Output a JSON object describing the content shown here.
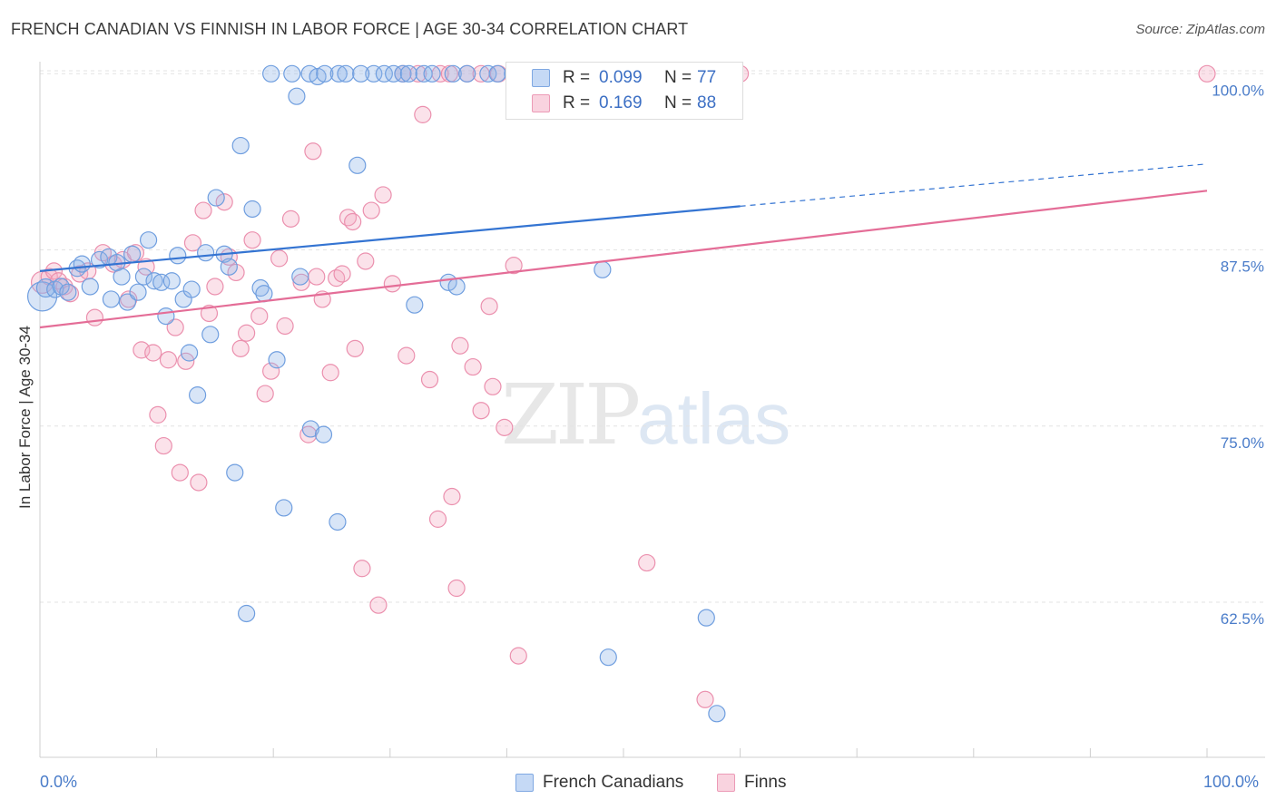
{
  "header": {
    "title": "FRENCH CANADIAN VS FINNISH IN LABOR FORCE | AGE 30-34 CORRELATION CHART",
    "source": "Source: ZipAtlas.com"
  },
  "watermark": {
    "zip": "ZIP",
    "atlas": "atlas"
  },
  "legend": {
    "rows": [
      {
        "r_label": "R =",
        "r_value": "0.099",
        "n_label": "N =",
        "n_value": "77",
        "color": "#a9c6ef"
      },
      {
        "r_label": "R =",
        "r_value": "0.169",
        "n_label": "N =",
        "n_value": "88",
        "color": "#f5b8cb"
      }
    ]
  },
  "bottom_legend": {
    "items": [
      {
        "label": "French Canadians",
        "color": "#a9c6ef"
      },
      {
        "label": "Finns",
        "color": "#f5b8cb"
      }
    ]
  },
  "colors": {
    "blue_fill": "rgba(143,180,232,0.35)",
    "blue_stroke": "#6f9edf",
    "blue_line": "#3474d2",
    "pink_fill": "rgba(244,172,196,0.35)",
    "pink_stroke": "#eb90ae",
    "pink_line": "#e46d97",
    "grid": "#e3e3e3",
    "tick_text": "#4a7cc9"
  },
  "chart_data": {
    "type": "scatter",
    "title": "FRENCH CANADIAN VS FINNISH IN LABOR FORCE | AGE 30-34 CORRELATION CHART",
    "xlabel": "",
    "ylabel": "In Labor Force | Age 30-34",
    "xlim": [
      0,
      100
    ],
    "ylim": [
      51.5,
      101.5
    ],
    "x_tick_labels": [
      "0.0%",
      "100.0%"
    ],
    "y_ticks": [
      {
        "value": 62.5,
        "label": "62.5%"
      },
      {
        "value": 75.0,
        "label": "75.0%"
      },
      {
        "value": 87.5,
        "label": "87.5%"
      },
      {
        "value": 100.0,
        "label": "100.0%"
      }
    ],
    "grid": true,
    "legend_position": "top-center",
    "series": [
      {
        "name": "French Canadians",
        "R": 0.099,
        "N": 77,
        "trend": {
          "x": [
            0,
            60,
            100
          ],
          "y": [
            86.0,
            90.6,
            93.6
          ],
          "solid_until": 60
        },
        "points": [
          [
            0.2,
            84.2,
            16
          ],
          [
            0.5,
            84.8,
            10
          ],
          [
            1.3,
            84.7,
            9
          ],
          [
            1.8,
            84.9,
            9
          ],
          [
            2.4,
            84.5,
            9
          ],
          [
            3.2,
            86.2,
            9
          ],
          [
            3.6,
            86.5,
            9
          ],
          [
            4.3,
            84.9,
            9
          ],
          [
            5.1,
            86.8,
            9
          ],
          [
            5.9,
            87.0,
            9
          ],
          [
            6.1,
            84.0,
            9
          ],
          [
            6.6,
            86.6,
            9
          ],
          [
            7.0,
            85.6,
            9
          ],
          [
            7.5,
            83.8,
            9
          ],
          [
            7.9,
            87.2,
            9
          ],
          [
            8.4,
            84.5,
            9
          ],
          [
            8.9,
            85.6,
            9
          ],
          [
            9.3,
            88.2,
            9
          ],
          [
            9.8,
            85.3,
            9
          ],
          [
            10.4,
            85.2,
            9
          ],
          [
            10.8,
            82.8,
            9
          ],
          [
            11.3,
            85.3,
            9
          ],
          [
            11.8,
            87.1,
            9
          ],
          [
            12.3,
            84.0,
            9
          ],
          [
            12.8,
            80.2,
            9
          ],
          [
            13.0,
            84.7,
            9
          ],
          [
            13.5,
            77.2,
            9
          ],
          [
            14.2,
            87.3,
            9
          ],
          [
            14.6,
            81.5,
            9
          ],
          [
            15.1,
            91.2,
            9
          ],
          [
            15.8,
            87.2,
            9
          ],
          [
            16.2,
            86.3,
            9
          ],
          [
            16.7,
            71.7,
            9
          ],
          [
            17.2,
            94.9,
            9
          ],
          [
            17.7,
            61.7,
            9
          ],
          [
            18.2,
            90.4,
            9
          ],
          [
            18.9,
            84.8,
            9
          ],
          [
            19.2,
            84.4,
            9
          ],
          [
            20.3,
            79.7,
            9
          ],
          [
            20.9,
            69.2,
            9
          ],
          [
            22.0,
            98.4,
            9
          ],
          [
            22.3,
            85.6,
            9
          ],
          [
            23.2,
            74.8,
            9
          ],
          [
            24.3,
            74.4,
            9
          ],
          [
            25.5,
            68.2,
            9
          ],
          [
            27.2,
            93.5,
            9
          ],
          [
            28.6,
            100.0,
            9
          ],
          [
            32.1,
            83.6,
            9
          ],
          [
            35.0,
            85.2,
            9
          ],
          [
            35.7,
            84.9,
            9
          ],
          [
            48.2,
            86.1,
            9
          ],
          [
            48.7,
            58.6,
            9
          ],
          [
            57.1,
            61.4,
            9
          ],
          [
            58.0,
            54.6,
            9
          ],
          [
            19.8,
            100.0,
            9
          ],
          [
            21.6,
            100.0,
            9
          ],
          [
            23.1,
            100.0,
            9
          ],
          [
            23.8,
            99.8,
            9
          ],
          [
            24.4,
            100.0,
            9
          ],
          [
            25.6,
            100.0,
            9
          ],
          [
            26.2,
            100.0,
            9
          ],
          [
            27.5,
            100.0,
            9
          ],
          [
            29.5,
            100.0,
            9
          ],
          [
            30.3,
            100.0,
            9
          ],
          [
            31.1,
            100.0,
            9
          ],
          [
            31.6,
            100.0,
            9
          ],
          [
            32.9,
            100.0,
            9
          ],
          [
            33.6,
            100.0,
            9
          ],
          [
            35.4,
            100.0,
            9
          ],
          [
            36.6,
            100.0,
            9
          ],
          [
            38.4,
            100.0,
            9
          ],
          [
            39.2,
            100.0,
            9
          ],
          [
            40.5,
            100.0,
            9
          ],
          [
            41.3,
            100.0,
            9
          ],
          [
            43.3,
            100.0,
            9
          ],
          [
            44.1,
            100.0,
            9
          ],
          [
            45.5,
            100.0,
            9
          ]
        ]
      },
      {
        "name": "Finns",
        "R": 0.169,
        "N": 88,
        "trend": {
          "x": [
            0,
            100
          ],
          "y": [
            82.0,
            91.7
          ]
        },
        "points": [
          [
            0.2,
            85.2,
            12
          ],
          [
            0.8,
            85.6,
            9
          ],
          [
            1.2,
            86.0,
            9
          ],
          [
            1.6,
            85.3,
            9
          ],
          [
            2.1,
            84.9,
            9
          ],
          [
            2.6,
            84.4,
            9
          ],
          [
            3.4,
            85.8,
            9
          ],
          [
            4.1,
            86.0,
            9
          ],
          [
            4.7,
            82.7,
            9
          ],
          [
            5.4,
            87.3,
            9
          ],
          [
            6.3,
            86.5,
            9
          ],
          [
            7.1,
            86.8,
            9
          ],
          [
            7.6,
            84.0,
            9
          ],
          [
            8.2,
            87.3,
            9
          ],
          [
            8.7,
            80.4,
            9
          ],
          [
            9.1,
            86.3,
            9
          ],
          [
            9.7,
            80.2,
            9
          ],
          [
            10.1,
            75.8,
            9
          ],
          [
            10.6,
            73.6,
            9
          ],
          [
            11.0,
            79.7,
            9
          ],
          [
            11.6,
            82.0,
            9
          ],
          [
            12.0,
            71.7,
            9
          ],
          [
            12.5,
            79.6,
            9
          ],
          [
            13.1,
            88.0,
            9
          ],
          [
            13.6,
            71.0,
            9
          ],
          [
            14.0,
            90.3,
            9
          ],
          [
            14.5,
            83.0,
            9
          ],
          [
            15.0,
            84.9,
            9
          ],
          [
            15.8,
            90.9,
            9
          ],
          [
            16.2,
            87.0,
            9
          ],
          [
            16.8,
            85.9,
            9
          ],
          [
            17.2,
            80.5,
            9
          ],
          [
            17.7,
            81.6,
            9
          ],
          [
            18.2,
            88.2,
            9
          ],
          [
            18.8,
            82.8,
            9
          ],
          [
            19.3,
            77.3,
            9
          ],
          [
            19.8,
            78.9,
            9
          ],
          [
            20.5,
            86.9,
            9
          ],
          [
            21.0,
            82.1,
            9
          ],
          [
            21.5,
            89.7,
            9
          ],
          [
            22.4,
            85.2,
            9
          ],
          [
            23.0,
            74.4,
            9
          ],
          [
            23.4,
            94.5,
            9
          ],
          [
            23.7,
            85.6,
            9
          ],
          [
            24.2,
            84.0,
            9
          ],
          [
            24.9,
            78.8,
            9
          ],
          [
            25.4,
            85.5,
            9
          ],
          [
            25.9,
            85.8,
            9
          ],
          [
            26.4,
            89.8,
            9
          ],
          [
            26.8,
            89.5,
            9
          ],
          [
            27.0,
            80.5,
            9
          ],
          [
            27.6,
            64.9,
            9
          ],
          [
            27.9,
            86.7,
            9
          ],
          [
            28.4,
            90.3,
            9
          ],
          [
            29.0,
            62.3,
            9
          ],
          [
            29.4,
            91.4,
            9
          ],
          [
            30.2,
            85.1,
            9
          ],
          [
            31.4,
            80.0,
            9
          ],
          [
            32.8,
            97.1,
            9
          ],
          [
            33.4,
            78.3,
            9
          ],
          [
            34.1,
            68.4,
            9
          ],
          [
            35.3,
            70.0,
            9
          ],
          [
            35.7,
            63.5,
            9
          ],
          [
            36.0,
            80.7,
            9
          ],
          [
            37.1,
            79.2,
            9
          ],
          [
            37.8,
            76.1,
            9
          ],
          [
            38.5,
            83.5,
            9
          ],
          [
            38.8,
            77.8,
            9
          ],
          [
            39.8,
            74.9,
            9
          ],
          [
            40.6,
            86.4,
            9
          ],
          [
            41.0,
            58.7,
            9
          ],
          [
            52.0,
            65.3,
            9
          ],
          [
            57.0,
            55.6,
            9
          ],
          [
            31.1,
            100.0,
            9
          ],
          [
            32.4,
            100.0,
            9
          ],
          [
            34.3,
            100.0,
            9
          ],
          [
            35.1,
            100.0,
            9
          ],
          [
            36.6,
            100.0,
            9
          ],
          [
            37.8,
            100.0,
            9
          ],
          [
            39.3,
            100.0,
            9
          ],
          [
            41.6,
            100.0,
            9
          ],
          [
            43.0,
            100.0,
            9
          ],
          [
            44.2,
            100.0,
            9
          ],
          [
            45.9,
            100.0,
            9
          ],
          [
            53.0,
            100.0,
            9
          ],
          [
            60.0,
            100.0,
            9
          ],
          [
            100.0,
            100.0,
            9
          ]
        ]
      }
    ]
  }
}
